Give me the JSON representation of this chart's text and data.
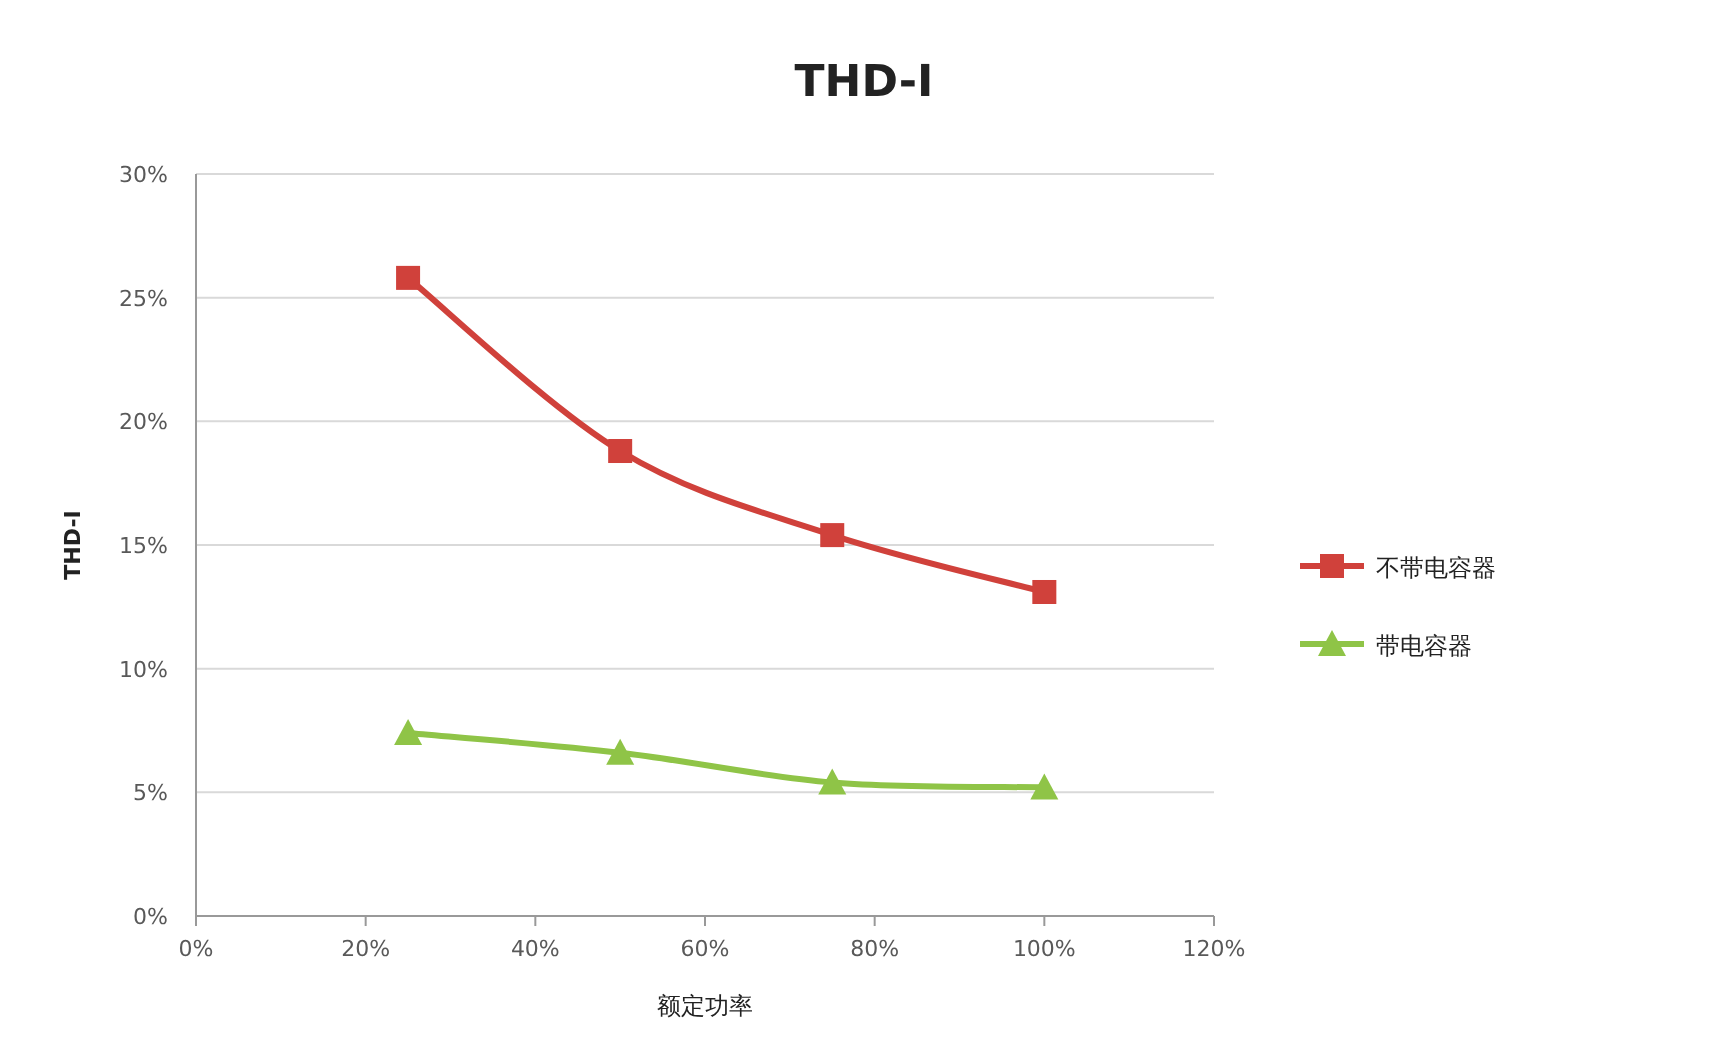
{
  "chart_data": {
    "type": "line",
    "title": "THD-I",
    "xlabel": "额定功率",
    "ylabel": "THD-I",
    "xlim": [
      0,
      120
    ],
    "ylim": [
      0,
      30
    ],
    "xticks": [
      {
        "value": 0,
        "label": "0%"
      },
      {
        "value": 20,
        "label": "20%"
      },
      {
        "value": 40,
        "label": "40%"
      },
      {
        "value": 60,
        "label": "60%"
      },
      {
        "value": 80,
        "label": "80%"
      },
      {
        "value": 100,
        "label": "100%"
      },
      {
        "value": 120,
        "label": "120%"
      }
    ],
    "yticks": [
      {
        "value": 0,
        "label": "0%"
      },
      {
        "value": 5,
        "label": "5%"
      },
      {
        "value": 10,
        "label": "10%"
      },
      {
        "value": 15,
        "label": "15%"
      },
      {
        "value": 20,
        "label": "20%"
      },
      {
        "value": 25,
        "label": "25%"
      },
      {
        "value": 30,
        "label": "30%"
      }
    ],
    "grid": "y",
    "legend": "right",
    "x": [
      25,
      50,
      75,
      100
    ],
    "series": [
      {
        "name": "不带电容器",
        "color": "#d0413b",
        "marker": "square",
        "values": [
          25.8,
          18.8,
          15.4,
          13.1
        ]
      },
      {
        "name": "带电容器",
        "color": "#8fc447",
        "marker": "triangle",
        "values": [
          7.4,
          6.6,
          5.4,
          5.2
        ]
      }
    ]
  }
}
